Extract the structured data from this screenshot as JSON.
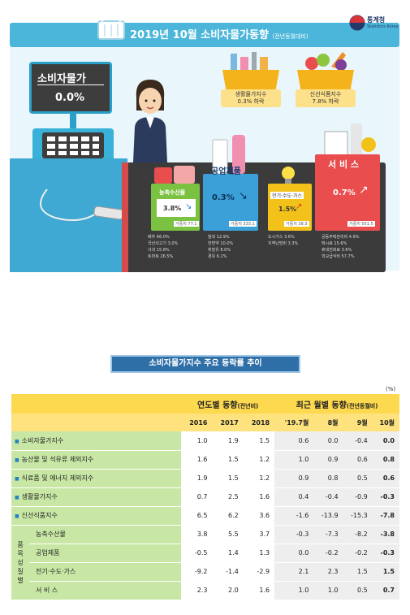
{
  "header": {
    "title": "2019년 10월 소비자물가동향",
    "title_note": "(전년동월대비)",
    "agency": "통계청",
    "agency_en": "Statistics Korea"
  },
  "infographic": {
    "cpi_label": "소비자물가",
    "cpi_value": "0.0%",
    "living_basket": {
      "label": "생활물가지수",
      "value": "0.3% 하락"
    },
    "fresh_basket": {
      "label": "신선식품지수",
      "value": "7.8% 하락"
    },
    "agri": {
      "label": "농축수산물",
      "value": "3.8%",
      "weight": "가중치 77.1",
      "items": [
        "배추 66.0%",
        "국산쇠고기 3.0%",
        "사과 15.8%",
        "토마토 26.5%"
      ]
    },
    "industrial": {
      "label": "공업제품",
      "value": "0.3%",
      "weight": "가중치 333.1",
      "items": [
        "참외 12.9%",
        "한방약 10.0%",
        "휘발유 8.0%",
        "경유 6.1%"
      ]
    },
    "utility": {
      "label": "전기·수도·가스",
      "value": "1.5%",
      "weight": "가중치 38.3",
      "items": [
        "도시가스 3.6%",
        "지역난방비 3.3%"
      ]
    },
    "service": {
      "label": "서 비 스",
      "value": "0.7%",
      "weight": "가중치 551.5",
      "items": [
        "공동주택관리비 4.9%",
        "택시료 15.6%",
        "휴대전화료 3.6%",
        "학교급식비 57.7%"
      ]
    },
    "colors": {
      "banner": "#4bb6da",
      "agri": "#7cc242",
      "industrial": "#3aa0d7",
      "utility": "#f2c21b",
      "service": "#e94d4d"
    }
  },
  "section_title": "소비자물가지수 주요 등락률 추이",
  "unit": "(%)",
  "table": {
    "group_yearly": "연도별 동향",
    "group_yearly_note": "(전년비)",
    "group_monthly": "최근 월별 동향",
    "group_monthly_note": "(전년동월비)",
    "columns": [
      "2016",
      "2017",
      "2018",
      "'19.7월",
      "8월",
      "9월",
      "10월"
    ],
    "rows": [
      {
        "label": "소비자물가지수",
        "values": [
          "1.0",
          "1.9",
          "1.5",
          "0.6",
          "0.0",
          "-0.4",
          "0.0"
        ]
      },
      {
        "label": "농산물 및 석유류 제외지수",
        "values": [
          "1.6",
          "1.5",
          "1.2",
          "1.0",
          "0.9",
          "0.6",
          "0.8"
        ]
      },
      {
        "label": "식료품 및 에너지 제외지수",
        "values": [
          "1.9",
          "1.5",
          "1.2",
          "0.9",
          "0.8",
          "0.5",
          "0.6"
        ]
      },
      {
        "label": "생활물가지수",
        "values": [
          "0.7",
          "2.5",
          "1.6",
          "0.4",
          "-0.4",
          "-0.9",
          "-0.3"
        ]
      },
      {
        "label": "신선식품지수",
        "values": [
          "6.5",
          "6.2",
          "3.6",
          "-1.6",
          "-13.9",
          "-15.3",
          "-7.8"
        ]
      }
    ],
    "group_label": [
      "품",
      "목",
      "성",
      "질",
      "별"
    ],
    "sub_rows": [
      {
        "label": "농축수산물",
        "values": [
          "3.8",
          "5.5",
          "3.7",
          "-0.3",
          "-7.3",
          "-8.2",
          "-3.8"
        ]
      },
      {
        "label": "공업제품",
        "values": [
          "-0.5",
          "1.4",
          "1.3",
          "0.0",
          "-0.2",
          "-0.2",
          "-0.3"
        ]
      },
      {
        "label": "전기·수도·가스",
        "values": [
          "-9.2",
          "-1.4",
          "-2.9",
          "2.1",
          "2.3",
          "1.5",
          "1.5"
        ]
      },
      {
        "label": "서 비 스",
        "values": [
          "2.3",
          "2.0",
          "1.6",
          "1.0",
          "1.0",
          "0.5",
          "0.7"
        ]
      }
    ]
  }
}
